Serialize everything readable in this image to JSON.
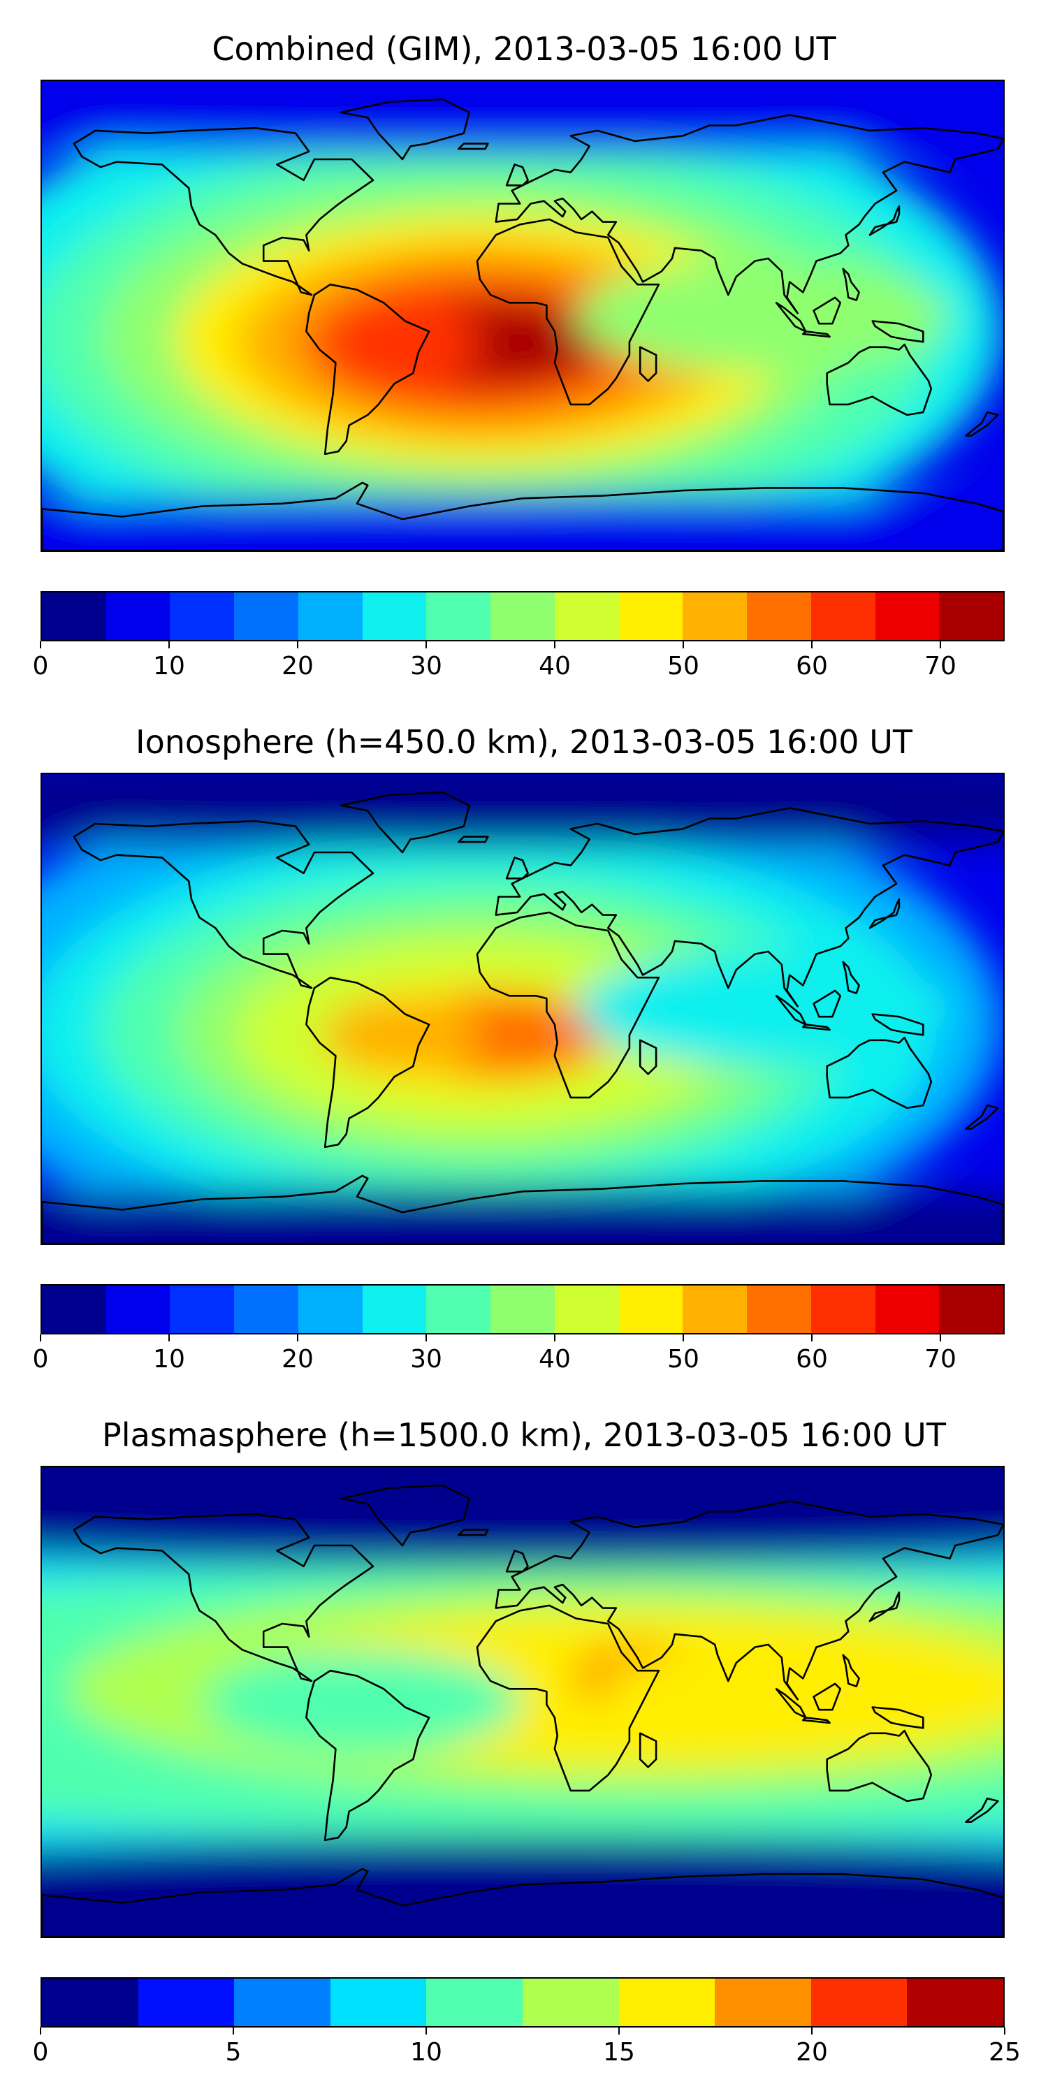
{
  "chart_data": [
    {
      "type": "heatmap",
      "title": "Combined (GIM), 2013-03-05 16:00 UT",
      "projection": "world map (plate carree) with coastlines",
      "colorbar": {
        "min": 0,
        "max": 75,
        "step": 5,
        "ticks": [
          0,
          10,
          20,
          30,
          40,
          50,
          60,
          70
        ],
        "colors": [
          "#00008f",
          "#0000ec",
          "#0030ff",
          "#0070ff",
          "#00b0ff",
          "#10f0ee",
          "#50ffaf",
          "#8fff70",
          "#cfff30",
          "#ffee00",
          "#ffb000",
          "#ff7000",
          "#ff3000",
          "#ef0000",
          "#a80000"
        ]
      },
      "features": [
        {
          "region": "tropical Atlantic / Africa (peak)",
          "lon": -10,
          "lat": -10,
          "value": 70
        },
        {
          "region": "South America",
          "lon": -50,
          "lat": -10,
          "value": 62
        },
        {
          "region": "Indian Ocean / SE Asia",
          "lon": 90,
          "lat": 5,
          "value": 35
        },
        {
          "region": "high latitudes",
          "lon": 0,
          "lat": 70,
          "value": 8
        }
      ]
    },
    {
      "type": "heatmap",
      "title": "Ionosphere  (h=450.0 km), 2013-03-05 16:00 UT",
      "projection": "world map (plate carree) with coastlines",
      "colorbar": {
        "min": 0,
        "max": 75,
        "step": 5,
        "ticks": [
          0,
          10,
          20,
          30,
          40,
          50,
          60,
          70
        ],
        "colors": [
          "#00008f",
          "#0000ec",
          "#0030ff",
          "#0070ff",
          "#00b0ff",
          "#10f0ee",
          "#50ffaf",
          "#8fff70",
          "#cfff30",
          "#ffee00",
          "#ffb000",
          "#ff7000",
          "#ff3000",
          "#ef0000",
          "#a80000"
        ]
      },
      "features": [
        {
          "region": "tropical Atlantic / Africa (peak)",
          "lon": -10,
          "lat": -10,
          "value": 55
        },
        {
          "region": "South America",
          "lon": -45,
          "lat": -10,
          "value": 52
        },
        {
          "region": "Indian Ocean / SE Asia",
          "lon": 80,
          "lat": -5,
          "value": 25
        },
        {
          "region": "high latitudes",
          "lon": 0,
          "lat": 70,
          "value": 4
        }
      ]
    },
    {
      "type": "heatmap",
      "title": "Plasmasphere (h=1500.0 km), 2013-03-05 16:00 UT",
      "projection": "world map (plate carree) with coastlines",
      "colorbar": {
        "min": 0,
        "max": 25,
        "step": 2.5,
        "ticks": [
          0,
          5,
          10,
          15,
          20,
          25
        ],
        "colors": [
          "#00008f",
          "#0010ff",
          "#0080ff",
          "#00e0ff",
          "#50ffaf",
          "#afff50",
          "#ffee00",
          "#ff9000",
          "#ff3000",
          "#b00000"
        ]
      },
      "features": [
        {
          "region": "East Africa / Arabian Sea (peak)",
          "lon": 45,
          "lat": 10,
          "value": 18
        },
        {
          "region": "Indian Ocean / SE Asia",
          "lon": 90,
          "lat": 5,
          "value": 16
        },
        {
          "region": "equatorial band",
          "lon": -60,
          "lat": 0,
          "value": 11
        },
        {
          "region": "high latitudes",
          "lon": 0,
          "lat": 70,
          "value": 1
        }
      ]
    }
  ]
}
